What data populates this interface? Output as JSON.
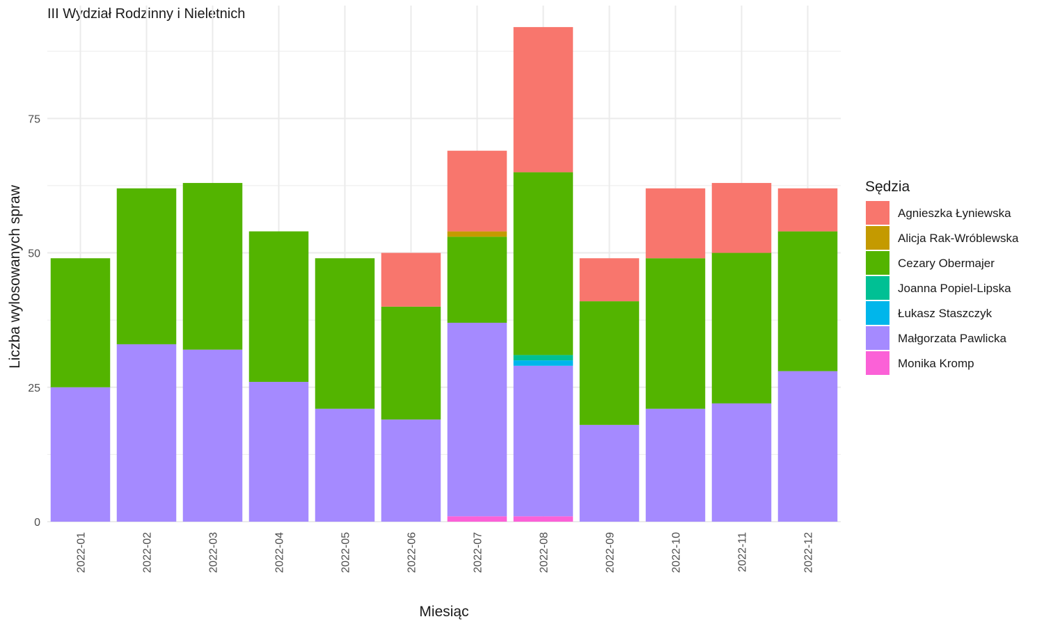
{
  "chart_data": {
    "type": "bar",
    "stacked": true,
    "title": "III Wydział Rodzinny i Nieletnich",
    "xlabel": "Miesiąc",
    "ylabel": "Liczba wylosowanych spraw",
    "legend_title": "Sędzia",
    "legend_position": "right",
    "grid": true,
    "ylim": [
      0,
      96
    ],
    "yticks": [
      0,
      25,
      50,
      75
    ],
    "categories": [
      "2022-01",
      "2022-02",
      "2022-03",
      "2022-04",
      "2022-05",
      "2022-06",
      "2022-07",
      "2022-08",
      "2022-09",
      "2022-10",
      "2022-11",
      "2022-12"
    ],
    "series": [
      {
        "name": "Agnieszka Łyniewska",
        "color": "#F8766D",
        "values": [
          0,
          0,
          0,
          0,
          0,
          10,
          15,
          27,
          8,
          13,
          13,
          8
        ]
      },
      {
        "name": "Alicja Rak-Wróblewska",
        "color": "#C49A00",
        "values": [
          0,
          0,
          0,
          0,
          0,
          0,
          1,
          0,
          0,
          0,
          0,
          0
        ]
      },
      {
        "name": "Cezary Obermajer",
        "color": "#53B400",
        "values": [
          24,
          29,
          31,
          28,
          28,
          21,
          16,
          34,
          23,
          28,
          28,
          26
        ]
      },
      {
        "name": "Joanna Popiel-Lipska",
        "color": "#00C094",
        "values": [
          0,
          0,
          0,
          0,
          0,
          0,
          0,
          1,
          0,
          0,
          0,
          0
        ]
      },
      {
        "name": "Łukasz Staszczyk",
        "color": "#00B6EB",
        "values": [
          0,
          0,
          0,
          0,
          0,
          0,
          0,
          1,
          0,
          0,
          0,
          0
        ]
      },
      {
        "name": "Małgorzata Pawlicka",
        "color": "#A58AFF",
        "values": [
          25,
          33,
          32,
          26,
          21,
          19,
          36,
          28,
          18,
          21,
          22,
          28
        ]
      },
      {
        "name": "Monika Kromp",
        "color": "#FB61D7",
        "values": [
          0,
          0,
          0,
          0,
          0,
          0,
          1,
          1,
          0,
          0,
          0,
          0
        ]
      }
    ],
    "stack_order_bottom_to_top": [
      "Monika Kromp",
      "Małgorzata Pawlicka",
      "Łukasz Staszczyk",
      "Joanna Popiel-Lipska",
      "Cezary Obermajer",
      "Alicja Rak-Wróblewska",
      "Agnieszka Łyniewska"
    ]
  }
}
